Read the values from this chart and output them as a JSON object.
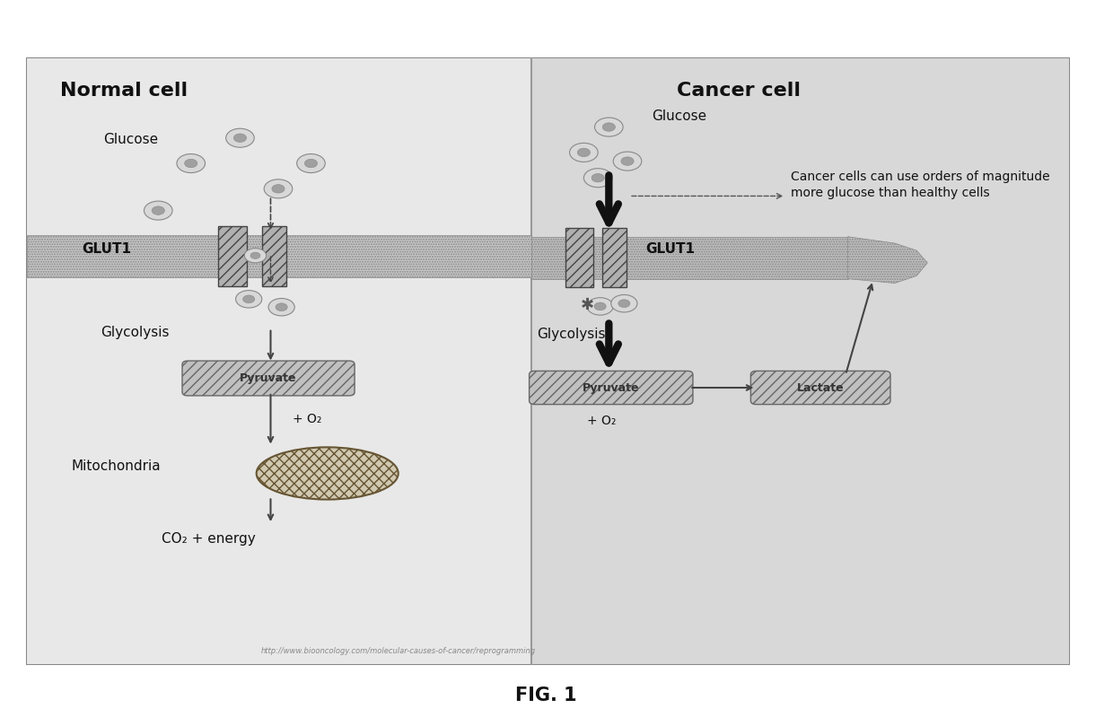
{
  "fig_width": 12.4,
  "fig_height": 8.09,
  "dpi": 100,
  "bg_color": "#ffffff",
  "normal_cell_label": "Normal cell",
  "cancer_cell_label": "Cancer cell",
  "glucose_label_left": "Glucose",
  "glucose_label_right": "Glucose",
  "glut1_label_left": "GLUT1",
  "glut1_label_right": "GLUT1",
  "glycolysis_label_left": "Glycolysis",
  "glycolysis_label_right": "Glycolysis",
  "pyruvate_label": "Pyruvate",
  "lactate_label": "Lactate",
  "mitochondria_label": "Mitochondria",
  "co2_label": "CO₂ + energy",
  "o2_label_left": "+ O₂",
  "o2_label_right": "+ O₂",
  "cancer_annotation": "Cancer cells can use orders of magnitude\nmore glucose than healthy cells",
  "url_text": "http://www.biooncology.com/molecular-causes-of-cancer/reprogramming",
  "fig_caption": "FIG. 1"
}
